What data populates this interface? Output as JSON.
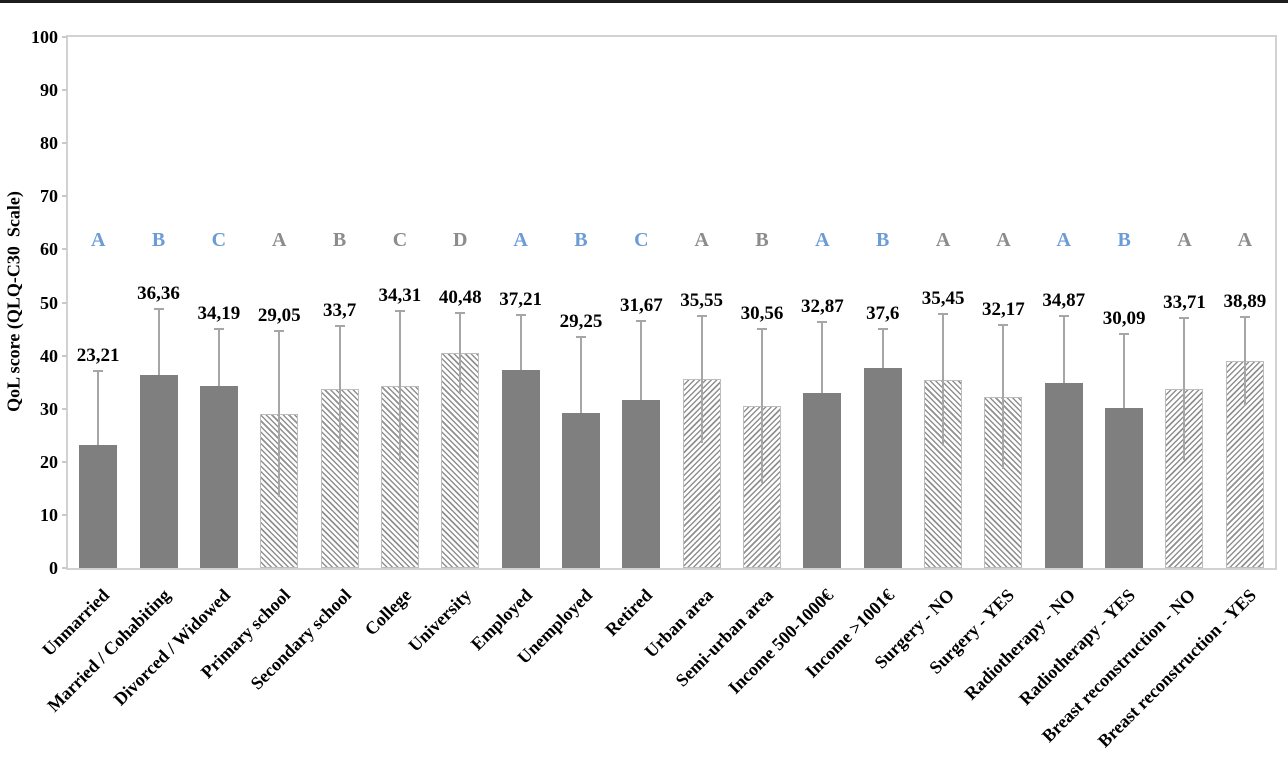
{
  "chart_data": {
    "type": "bar",
    "title": "",
    "xlabel": "",
    "ylabel": "QoL score (QLQ-C30  Scale)",
    "ylim": [
      0,
      100
    ],
    "yticks": [
      0,
      10,
      20,
      30,
      40,
      50,
      60,
      70,
      80,
      90,
      100
    ],
    "grid": false,
    "legend": "none",
    "decimal_separator": ",",
    "bars": [
      {
        "category": "Unmarried",
        "value": 23.21,
        "label": "23,21",
        "sd": 13.8,
        "letter": "A",
        "letter_color": "blue",
        "fill": "solid"
      },
      {
        "category": "Married / Cohabiting",
        "value": 36.36,
        "label": "36,36",
        "sd": 12.4,
        "letter": "B",
        "letter_color": "blue",
        "fill": "solid"
      },
      {
        "category": "Divorced / Widowed",
        "value": 34.19,
        "label": "34,19",
        "sd": 10.8,
        "letter": "C",
        "letter_color": "blue",
        "fill": "solid"
      },
      {
        "category": "Primary school",
        "value": 29.05,
        "label": "29,05",
        "sd": 15.6,
        "letter": "A",
        "letter_color": "gray",
        "fill": "hatch-down"
      },
      {
        "category": "Secondary school",
        "value": 33.7,
        "label": "33,7",
        "sd": 11.9,
        "letter": "B",
        "letter_color": "gray",
        "fill": "hatch-down"
      },
      {
        "category": "College",
        "value": 34.31,
        "label": "34,31",
        "sd": 14.0,
        "letter": "C",
        "letter_color": "gray",
        "fill": "hatch-down"
      },
      {
        "category": "University",
        "value": 40.48,
        "label": "40,48",
        "sd": 7.5,
        "letter": "D",
        "letter_color": "gray",
        "fill": "hatch-down"
      },
      {
        "category": "Employed",
        "value": 37.21,
        "label": "37,21",
        "sd": 10.4,
        "letter": "A",
        "letter_color": "blue",
        "fill": "solid"
      },
      {
        "category": "Unemployed",
        "value": 29.25,
        "label": "29,25",
        "sd": 14.3,
        "letter": "B",
        "letter_color": "blue",
        "fill": "solid"
      },
      {
        "category": "Retired",
        "value": 31.67,
        "label": "31,67",
        "sd": 14.9,
        "letter": "C",
        "letter_color": "blue",
        "fill": "solid"
      },
      {
        "category": "Urban area",
        "value": 35.55,
        "label": "35,55",
        "sd": 12.0,
        "letter": "A",
        "letter_color": "gray",
        "fill": "hatch-up"
      },
      {
        "category": "Semi-urban area",
        "value": 30.56,
        "label": "30,56",
        "sd": 14.5,
        "letter": "B",
        "letter_color": "gray",
        "fill": "hatch-up"
      },
      {
        "category": "Income 500-1000€",
        "value": 32.87,
        "label": "32,87",
        "sd": 13.5,
        "letter": "A",
        "letter_color": "blue",
        "fill": "solid"
      },
      {
        "category": "Income >1001€",
        "value": 37.6,
        "label": "37,6",
        "sd": 7.5,
        "letter": "B",
        "letter_color": "blue",
        "fill": "solid"
      },
      {
        "category": "Surgery - NO",
        "value": 35.45,
        "label": "35,45",
        "sd": 12.4,
        "letter": "A",
        "letter_color": "gray",
        "fill": "hatch-down"
      },
      {
        "category": "Surgery - YES",
        "value": 32.17,
        "label": "32,17",
        "sd": 13.5,
        "letter": "A",
        "letter_color": "gray",
        "fill": "hatch-down"
      },
      {
        "category": "Radiotherapy - NO",
        "value": 34.87,
        "label": "34,87",
        "sd": 12.6,
        "letter": "A",
        "letter_color": "blue",
        "fill": "solid"
      },
      {
        "category": "Radiotherapy - YES",
        "value": 30.09,
        "label": "30,09",
        "sd": 14.0,
        "letter": "B",
        "letter_color": "blue",
        "fill": "solid"
      },
      {
        "category": "Breast reconstruction - NO",
        "value": 33.71,
        "label": "33,71",
        "sd": 13.3,
        "letter": "A",
        "letter_color": "gray",
        "fill": "hatch-up"
      },
      {
        "category": "Breast reconstruction - YES",
        "value": 38.89,
        "label": "38,89",
        "sd": 8.4,
        "letter": "A",
        "letter_color": "gray",
        "fill": "hatch-up"
      }
    ],
    "colors": {
      "bar_solid": "#7f7f7f",
      "hatch_line": "#909090",
      "error_bar": "#a6a6a6",
      "letter_blue": "#6c9cd6",
      "letter_gray": "#8c8c8c",
      "axis_border": "#d2d2d2",
      "text": "#000000"
    },
    "layout_hints": {
      "significance_letters_y_value": 62,
      "x_labels_rotation_deg": 45,
      "error_bars": "symmetric, cap on top only, hidden inside solid bars"
    }
  }
}
